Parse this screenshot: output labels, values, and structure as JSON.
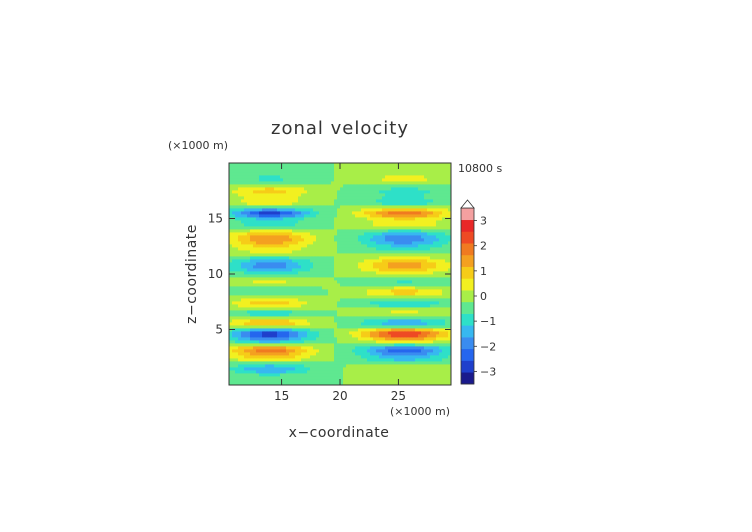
{
  "chart_data": {
    "type": "heatmap",
    "title": "zonal velocity",
    "xlabel": "x−coordinate",
    "ylabel": "z−coordinate",
    "x_unit": "(×1000 m)",
    "z_unit": "(×1000 m)",
    "time_label": "10800 s",
    "xlim": [
      10.5,
      29.5
    ],
    "ylim": [
      0,
      20
    ],
    "x_ticks": [
      15,
      20,
      25
    ],
    "x_tick_labels": [
      "15",
      "20",
      "25"
    ],
    "y_ticks": [
      5,
      10,
      15
    ],
    "y_tick_labels": [
      "5",
      "10",
      "15"
    ],
    "colorbar": {
      "min": -3.5,
      "max": 3.5,
      "step": 0.5,
      "ticks": [
        -3,
        -2,
        -1,
        0,
        1,
        2,
        3
      ],
      "tick_labels": [
        "−3",
        "−2",
        "−1",
        "0",
        "1",
        "2",
        "3"
      ],
      "extend": "max",
      "colors": [
        "#1a1a8c",
        "#1f3fcc",
        "#2566ee",
        "#3a8cf0",
        "#37b8f0",
        "#2ee0c8",
        "#5fe890",
        "#a8ee48",
        "#f2f020",
        "#f6cc18",
        "#f4a020",
        "#f07a20",
        "#ee4a24",
        "#e82828",
        "#f4a0a0"
      ]
    },
    "bands": [
      {
        "z": 1.5,
        "w": 0.55,
        "left": -1.5,
        "right": 0.5
      },
      {
        "z": 2.4,
        "w": 0.5,
        "left": 1.0,
        "right": -1.0
      },
      {
        "z": 3.2,
        "w": 0.55,
        "left": 2.3,
        "right": -2.3
      },
      {
        "z": 4.0,
        "w": 0.5,
        "left": -1.3,
        "right": 1.0
      },
      {
        "z": 4.7,
        "w": 0.5,
        "left": -2.6,
        "right": 3.0
      },
      {
        "z": 5.6,
        "w": 0.55,
        "left": 1.7,
        "right": -1.6
      },
      {
        "z": 6.5,
        "w": 0.55,
        "left": -1.0,
        "right": 0.8
      },
      {
        "z": 7.4,
        "w": 0.55,
        "left": 1.4,
        "right": -1.1
      },
      {
        "z": 8.4,
        "w": 0.6,
        "left": -0.6,
        "right": 1.3
      },
      {
        "z": 9.3,
        "w": 0.6,
        "left": 0.7,
        "right": -0.7
      },
      {
        "z": 10.8,
        "w": 0.8,
        "left": -1.8,
        "right": 1.8
      },
      {
        "z": 12.0,
        "w": 0.5,
        "left": 0.6,
        "right": -0.4
      },
      {
        "z": 13.2,
        "w": 0.8,
        "left": 2.0,
        "right": -1.9
      },
      {
        "z": 14.5,
        "w": 0.5,
        "left": -0.9,
        "right": 1.0
      },
      {
        "z": 15.5,
        "w": 0.45,
        "left": -2.7,
        "right": 2.4
      },
      {
        "z": 16.5,
        "w": 0.5,
        "left": 0.8,
        "right": -0.8
      },
      {
        "z": 17.5,
        "w": 0.55,
        "left": 1.2,
        "right": -0.7
      },
      {
        "z": 18.6,
        "w": 0.55,
        "left": -0.6,
        "right": 0.7
      }
    ]
  }
}
